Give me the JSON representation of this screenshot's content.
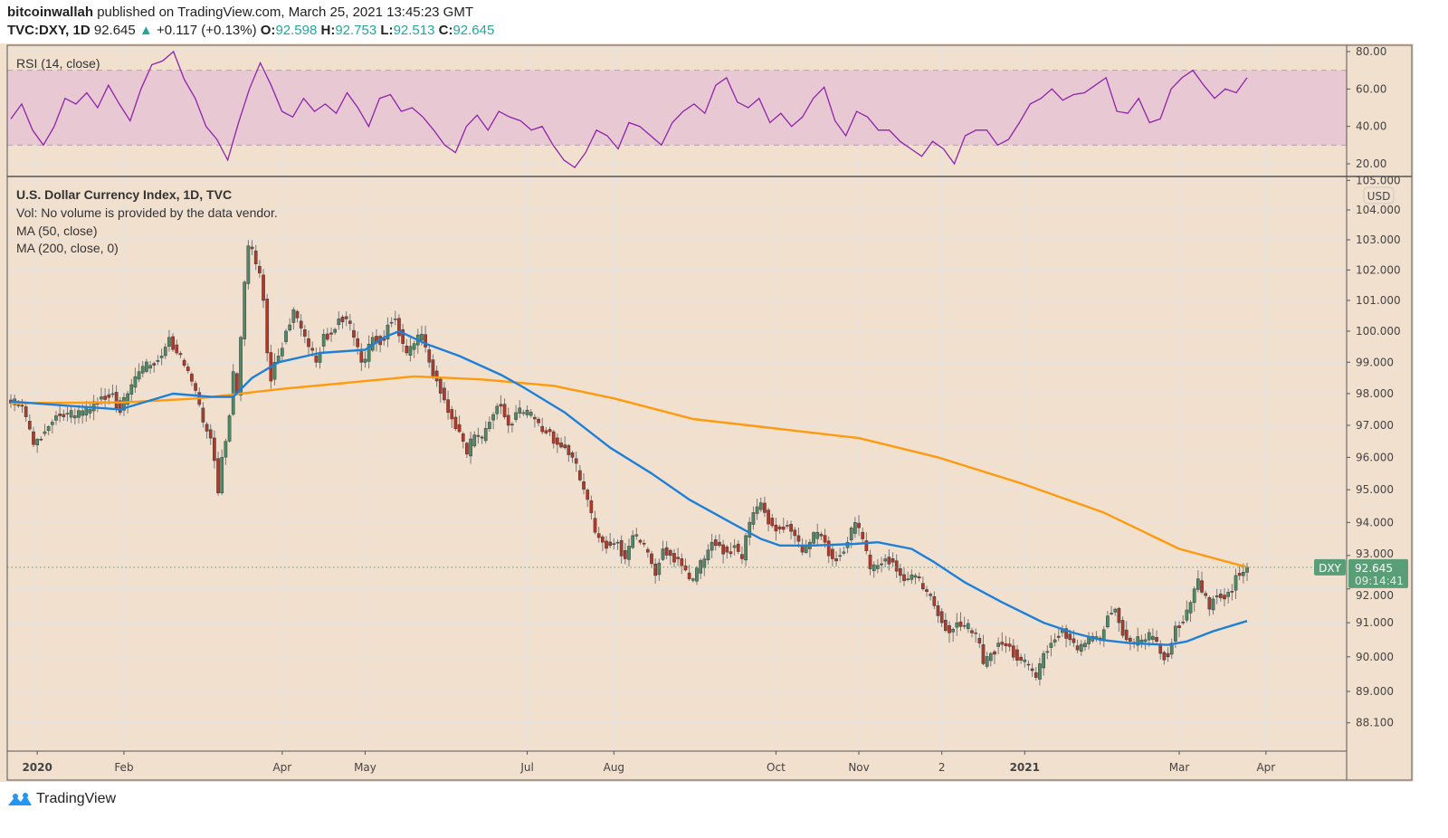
{
  "header": {
    "author": "bitcoinwallah",
    "published": "published on TradingView.com, March 25, 2021 13:45:23 GMT",
    "symbol": "TVC:DXY, 1D",
    "last": "92.645",
    "change": "+0.117 (+0.13%)",
    "o_label": "O:",
    "o": "92.598",
    "h_label": "H:",
    "h": "92.753",
    "l_label": "L:",
    "l": "92.513",
    "c_label": "C:",
    "c": "92.645"
  },
  "legend": {
    "title": "U.S. Dollar Currency Index, 1D, TVC",
    "vol": "Vol: No volume is provided by the data vendor.",
    "ma50": "MA (50, close)",
    "ma200": "MA (200, close, 0)",
    "rsi": "RSI (14, close)"
  },
  "footer": {
    "brand": "TradingView",
    "icon": "tradingview-logo-icon"
  },
  "colors": {
    "background": "#f2e0cf",
    "up": "#4f8a66",
    "down": "#b2392a",
    "ma50": "#1e7fd8",
    "ma200": "#ff9a0e",
    "rsi": "#8e24aa",
    "rsi_band": "#e8c8d3",
    "last_price": "#5a9e78"
  },
  "chart_data": {
    "type": "candlestick",
    "price_scale": "log",
    "currency": "USD",
    "symbol_tag": "DXY",
    "last_price": "92.645",
    "countdown": "09:14:41",
    "date_range": [
      "2019-12-23",
      "2021-03-25"
    ],
    "y_ticks": [
      "105.000",
      "104.000",
      "103.000",
      "102.000",
      "101.000",
      "100.000",
      "99.000",
      "98.000",
      "97.000",
      "96.000",
      "95.000",
      "94.000",
      "93.000",
      "92.000",
      "91.000",
      "90.000",
      "89.000",
      "88.100"
    ],
    "x_ticks": [
      {
        "date": "2020-01-01",
        "label": "2020",
        "bold": true
      },
      {
        "date": "2020-02-03",
        "label": "Feb"
      },
      {
        "date": "2020-04-01",
        "label": "Apr"
      },
      {
        "date": "2020-05-01",
        "label": "May"
      },
      {
        "date": "2020-07-01",
        "label": "Jul"
      },
      {
        "date": "2020-08-03",
        "label": "Aug"
      },
      {
        "date": "2020-10-01",
        "label": "Oct"
      },
      {
        "date": "2020-11-02",
        "label": "Nov"
      },
      {
        "date": "2020-12-02",
        "label": "2"
      },
      {
        "date": "2021-01-01",
        "label": "2021",
        "bold": true
      },
      {
        "date": "2021-03-01",
        "label": "Mar"
      },
      {
        "date": "2021-04-01",
        "label": "Apr"
      }
    ],
    "close": [
      [
        "2019-12-23",
        97.7
      ],
      [
        "2019-12-26",
        97.6
      ],
      [
        "2019-12-31",
        96.4
      ],
      [
        "2020-01-03",
        96.8
      ],
      [
        "2020-01-08",
        97.3
      ],
      [
        "2020-01-15",
        97.3
      ],
      [
        "2020-01-21",
        97.5
      ],
      [
        "2020-01-24",
        97.9
      ],
      [
        "2020-01-29",
        98.0
      ],
      [
        "2020-01-31",
        97.4
      ],
      [
        "2020-02-04",
        98.0
      ],
      [
        "2020-02-07",
        98.7
      ],
      [
        "2020-02-12",
        98.9
      ],
      [
        "2020-02-17",
        99.2
      ],
      [
        "2020-02-19",
        99.8
      ],
      [
        "2020-02-21",
        99.3
      ],
      [
        "2020-02-25",
        98.9
      ],
      [
        "2020-02-28",
        98.1
      ],
      [
        "2020-03-03",
        97.1
      ],
      [
        "2020-03-05",
        96.6
      ],
      [
        "2020-03-06",
        95.9
      ],
      [
        "2020-03-09",
        94.9
      ],
      [
        "2020-03-10",
        96.0
      ],
      [
        "2020-03-11",
        96.5
      ],
      [
        "2020-03-12",
        97.3
      ],
      [
        "2020-03-13",
        98.7
      ],
      [
        "2020-03-16",
        98.0
      ],
      [
        "2020-03-17",
        99.8
      ],
      [
        "2020-03-18",
        101.6
      ],
      [
        "2020-03-19",
        102.8
      ],
      [
        "2020-03-20",
        102.7
      ],
      [
        "2020-03-23",
        102.2
      ],
      [
        "2020-03-24",
        101.9
      ],
      [
        "2020-03-25",
        101.0
      ],
      [
        "2020-03-26",
        99.3
      ],
      [
        "2020-03-27",
        98.4
      ],
      [
        "2020-03-30",
        99.0
      ],
      [
        "2020-03-31",
        99.2
      ],
      [
        "2020-04-02",
        100.0
      ],
      [
        "2020-04-06",
        100.7
      ],
      [
        "2020-04-08",
        100.1
      ],
      [
        "2020-04-10",
        99.5
      ],
      [
        "2020-04-14",
        99.0
      ],
      [
        "2020-04-16",
        99.9
      ],
      [
        "2020-04-20",
        99.9
      ],
      [
        "2020-04-22",
        100.4
      ],
      [
        "2020-04-24",
        100.4
      ],
      [
        "2020-04-28",
        99.8
      ],
      [
        "2020-04-30",
        99.0
      ],
      [
        "2020-05-01",
        99.1
      ],
      [
        "2020-05-05",
        99.8
      ],
      [
        "2020-05-08",
        99.7
      ],
      [
        "2020-05-11",
        100.2
      ],
      [
        "2020-05-13",
        100.4
      ],
      [
        "2020-05-15",
        99.6
      ],
      [
        "2020-05-18",
        99.3
      ],
      [
        "2020-05-20",
        99.6
      ],
      [
        "2020-05-22",
        99.9
      ],
      [
        "2020-05-26",
        99.0
      ],
      [
        "2020-05-28",
        98.4
      ],
      [
        "2020-06-01",
        97.8
      ],
      [
        "2020-06-03",
        97.2
      ],
      [
        "2020-06-05",
        96.8
      ],
      [
        "2020-06-09",
        96.1
      ],
      [
        "2020-06-11",
        96.7
      ],
      [
        "2020-06-15",
        96.6
      ],
      [
        "2020-06-17",
        97.1
      ],
      [
        "2020-06-19",
        97.6
      ],
      [
        "2020-06-22",
        97.6
      ],
      [
        "2020-06-24",
        97.0
      ],
      [
        "2020-06-26",
        97.4
      ],
      [
        "2020-06-30",
        97.4
      ],
      [
        "2020-07-03",
        97.2
      ],
      [
        "2020-07-07",
        96.8
      ],
      [
        "2020-07-09",
        96.8
      ],
      [
        "2020-07-13",
        96.4
      ],
      [
        "2020-07-15",
        96.3
      ],
      [
        "2020-07-17",
        96.0
      ],
      [
        "2020-07-21",
        95.3
      ],
      [
        "2020-07-23",
        94.7
      ],
      [
        "2020-07-27",
        93.7
      ],
      [
        "2020-07-29",
        93.4
      ],
      [
        "2020-07-31",
        93.3
      ],
      [
        "2020-08-04",
        93.4
      ],
      [
        "2020-08-06",
        92.9
      ],
      [
        "2020-08-10",
        93.6
      ],
      [
        "2020-08-12",
        93.4
      ],
      [
        "2020-08-14",
        93.1
      ],
      [
        "2020-08-18",
        92.4
      ],
      [
        "2020-08-20",
        93.2
      ],
      [
        "2020-08-24",
        93.0
      ],
      [
        "2020-08-26",
        92.9
      ],
      [
        "2020-08-31",
        92.3
      ],
      [
        "2020-09-01",
        92.3
      ],
      [
        "2020-09-04",
        92.9
      ],
      [
        "2020-09-08",
        93.4
      ],
      [
        "2020-09-10",
        93.3
      ],
      [
        "2020-09-14",
        93.1
      ],
      [
        "2020-09-16",
        93.3
      ],
      [
        "2020-09-18",
        92.9
      ],
      [
        "2020-09-21",
        93.6
      ],
      [
        "2020-09-23",
        94.3
      ],
      [
        "2020-09-25",
        94.6
      ],
      [
        "2020-09-28",
        94.3
      ],
      [
        "2020-09-30",
        93.9
      ],
      [
        "2020-10-02",
        93.8
      ],
      [
        "2020-10-06",
        93.9
      ],
      [
        "2020-10-08",
        93.6
      ],
      [
        "2020-10-12",
        93.1
      ],
      [
        "2020-10-14",
        93.4
      ],
      [
        "2020-10-16",
        93.7
      ],
      [
        "2020-10-20",
        93.4
      ],
      [
        "2020-10-22",
        92.9
      ],
      [
        "2020-10-26",
        93.0
      ],
      [
        "2020-10-28",
        93.4
      ],
      [
        "2020-10-30",
        94.0
      ],
      [
        "2020-11-03",
        93.5
      ],
      [
        "2020-11-05",
        92.6
      ],
      [
        "2020-11-09",
        92.7
      ],
      [
        "2020-11-11",
        92.9
      ],
      [
        "2020-11-13",
        92.8
      ],
      [
        "2020-11-17",
        92.4
      ],
      [
        "2020-11-19",
        92.3
      ],
      [
        "2020-11-23",
        92.4
      ],
      [
        "2020-11-25",
        92.0
      ],
      [
        "2020-11-27",
        91.8
      ],
      [
        "2020-11-30",
        91.5
      ],
      [
        "2020-12-02",
        91.0
      ],
      [
        "2020-12-04",
        90.7
      ],
      [
        "2020-12-08",
        91.0
      ],
      [
        "2020-12-10",
        90.9
      ],
      [
        "2020-12-14",
        90.7
      ],
      [
        "2020-12-16",
        90.4
      ],
      [
        "2020-12-17",
        89.8
      ],
      [
        "2020-12-21",
        90.1
      ],
      [
        "2020-12-23",
        90.4
      ],
      [
        "2020-12-28",
        90.3
      ],
      [
        "2020-12-31",
        89.9
      ],
      [
        "2021-01-05",
        89.6
      ],
      [
        "2021-01-06",
        89.4
      ],
      [
        "2021-01-08",
        90.1
      ],
      [
        "2021-01-12",
        90.4
      ],
      [
        "2021-01-15",
        90.8
      ],
      [
        "2021-01-19",
        90.5
      ],
      [
        "2021-01-21",
        90.2
      ],
      [
        "2021-01-25",
        90.4
      ],
      [
        "2021-01-27",
        90.6
      ],
      [
        "2021-01-29",
        90.5
      ],
      [
        "2021-02-02",
        91.2
      ],
      [
        "2021-02-04",
        91.4
      ],
      [
        "2021-02-05",
        91.0
      ],
      [
        "2021-02-09",
        90.5
      ],
      [
        "2021-02-11",
        90.4
      ],
      [
        "2021-02-16",
        90.5
      ],
      [
        "2021-02-18",
        90.6
      ],
      [
        "2021-02-22",
        90.1
      ],
      [
        "2021-02-24",
        90.0
      ],
      [
        "2021-02-26",
        90.9
      ],
      [
        "2021-03-02",
        91.0
      ],
      [
        "2021-03-04",
        91.6
      ],
      [
        "2021-03-05",
        92.0
      ],
      [
        "2021-03-08",
        92.3
      ],
      [
        "2021-03-09",
        91.9
      ],
      [
        "2021-03-10",
        91.8
      ],
      [
        "2021-03-11",
        91.4
      ],
      [
        "2021-03-12",
        91.7
      ],
      [
        "2021-03-15",
        91.8
      ],
      [
        "2021-03-17",
        91.7
      ],
      [
        "2021-03-18",
        91.9
      ],
      [
        "2021-03-19",
        91.9
      ],
      [
        "2021-03-22",
        92.4
      ],
      [
        "2021-03-24",
        92.5
      ],
      [
        "2021-03-25",
        92.645
      ]
    ],
    "ma50": [
      [
        "2019-12-23",
        97.75
      ],
      [
        "2020-01-15",
        97.6
      ],
      [
        "2020-01-31",
        97.5
      ],
      [
        "2020-02-20",
        98.0
      ],
      [
        "2020-03-05",
        97.9
      ],
      [
        "2020-03-13",
        97.9
      ],
      [
        "2020-03-20",
        98.5
      ],
      [
        "2020-03-31",
        99.0
      ],
      [
        "2020-04-15",
        99.3
      ],
      [
        "2020-05-01",
        99.4
      ],
      [
        "2020-05-08",
        99.8
      ],
      [
        "2020-05-14",
        100.0
      ],
      [
        "2020-05-25",
        99.6
      ],
      [
        "2020-06-05",
        99.2
      ],
      [
        "2020-06-20",
        98.6
      ],
      [
        "2020-06-30",
        98.2
      ],
      [
        "2020-07-15",
        97.4
      ],
      [
        "2020-07-31",
        96.3
      ],
      [
        "2020-08-15",
        95.5
      ],
      [
        "2020-08-31",
        94.7
      ],
      [
        "2020-09-15",
        94.0
      ],
      [
        "2020-09-25",
        93.5
      ],
      [
        "2020-10-02",
        93.3
      ],
      [
        "2020-10-15",
        93.3
      ],
      [
        "2020-10-30",
        93.35
      ],
      [
        "2020-11-09",
        93.4
      ],
      [
        "2020-11-20",
        93.2
      ],
      [
        "2020-11-30",
        92.8
      ],
      [
        "2020-12-10",
        92.2
      ],
      [
        "2020-12-24",
        91.6
      ],
      [
        "2021-01-08",
        91.0
      ],
      [
        "2021-01-20",
        90.7
      ],
      [
        "2021-01-29",
        90.5
      ],
      [
        "2021-02-10",
        90.4
      ],
      [
        "2021-02-24",
        90.35
      ],
      [
        "2021-03-03",
        90.45
      ],
      [
        "2021-03-12",
        90.75
      ],
      [
        "2021-03-25",
        91.05
      ]
    ],
    "ma200": [
      [
        "2019-12-23",
        97.7
      ],
      [
        "2020-02-01",
        97.72
      ],
      [
        "2020-03-01",
        97.85
      ],
      [
        "2020-04-01",
        98.15
      ],
      [
        "2020-05-01",
        98.4
      ],
      [
        "2020-05-20",
        98.55
      ],
      [
        "2020-06-15",
        98.45
      ],
      [
        "2020-07-10",
        98.25
      ],
      [
        "2020-08-01",
        97.85
      ],
      [
        "2020-09-01",
        97.2
      ],
      [
        "2020-10-01",
        96.9
      ],
      [
        "2020-11-01",
        96.6
      ],
      [
        "2020-12-01",
        96.0
      ],
      [
        "2020-12-31",
        95.2
      ],
      [
        "2021-01-31",
        94.3
      ],
      [
        "2021-02-28",
        93.2
      ],
      [
        "2021-03-25",
        92.65
      ]
    ],
    "rsi": {
      "ticks": [
        "80.00",
        "60.00",
        "40.00",
        "20.00"
      ],
      "band": [
        30,
        70
      ],
      "range": [
        14,
        82
      ],
      "values": [
        44,
        52,
        38,
        30,
        40,
        55,
        52,
        58,
        50,
        62,
        52,
        43,
        60,
        73,
        75,
        80,
        65,
        55,
        40,
        33,
        22,
        42,
        60,
        74,
        62,
        48,
        45,
        55,
        48,
        52,
        47,
        58,
        50,
        40,
        55,
        57,
        48,
        50,
        45,
        38,
        30,
        26,
        40,
        46,
        38,
        48,
        45,
        43,
        38,
        40,
        30,
        22,
        18,
        26,
        38,
        35,
        28,
        42,
        40,
        35,
        30,
        42,
        48,
        52,
        47,
        62,
        66,
        53,
        50,
        55,
        42,
        47,
        40,
        45,
        55,
        61,
        43,
        35,
        48,
        45,
        38,
        38,
        32,
        28,
        24,
        32,
        28,
        20,
        35,
        38,
        38,
        30,
        33,
        42,
        52,
        55,
        60,
        54,
        57,
        58,
        62,
        66,
        48,
        47,
        55,
        42,
        44,
        60,
        66,
        70,
        62,
        55,
        60,
        58,
        66
      ]
    }
  }
}
